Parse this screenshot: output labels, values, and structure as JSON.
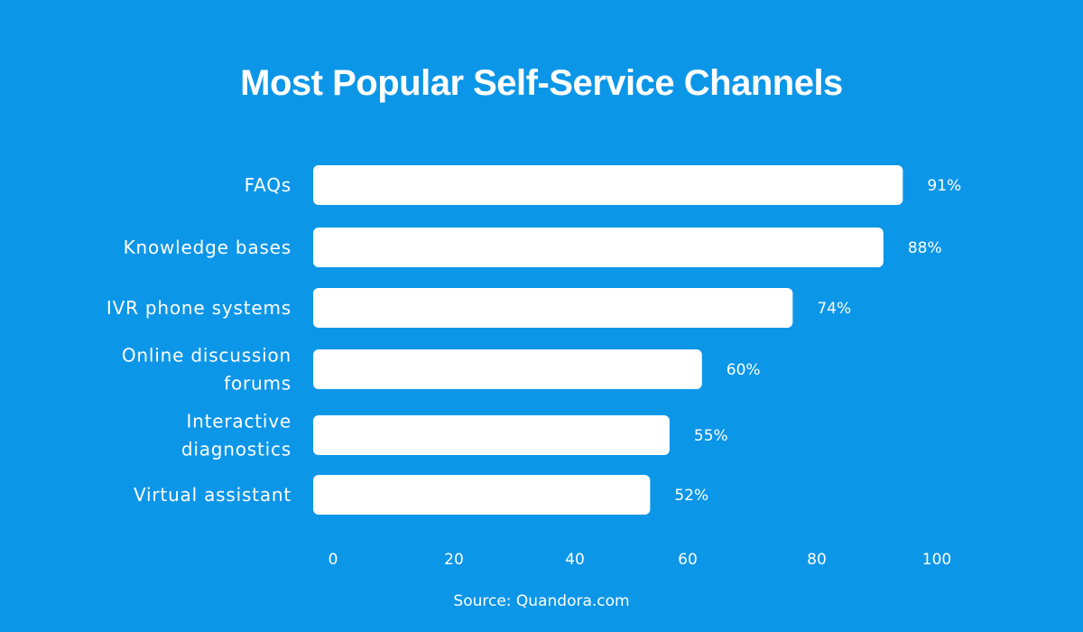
{
  "chart_data": {
    "type": "bar",
    "orientation": "horizontal",
    "title": "Most Popular Self-Service Channels",
    "categories": [
      [
        "FAQs"
      ],
      [
        "Knowledge bases"
      ],
      [
        "IVR phone systems"
      ],
      [
        "Online discussion",
        "forums"
      ],
      [
        "Interactive",
        "diagnostics"
      ],
      [
        "Virtual assistant"
      ]
    ],
    "values": [
      91,
      88,
      74,
      60,
      55,
      52
    ],
    "value_labels": [
      "91%",
      "88%",
      "74%",
      "60%",
      "55%",
      "52%"
    ],
    "xticks": [
      "0",
      "20",
      "40",
      "60",
      "80",
      "100"
    ],
    "xlim": [
      0,
      100
    ],
    "xlabel": "",
    "ylabel": "",
    "grid": false,
    "colors": {
      "background": "#0c96e8",
      "bar": "#ffffff",
      "text": "#ffffff"
    }
  },
  "source": "Source: Quandora.com"
}
